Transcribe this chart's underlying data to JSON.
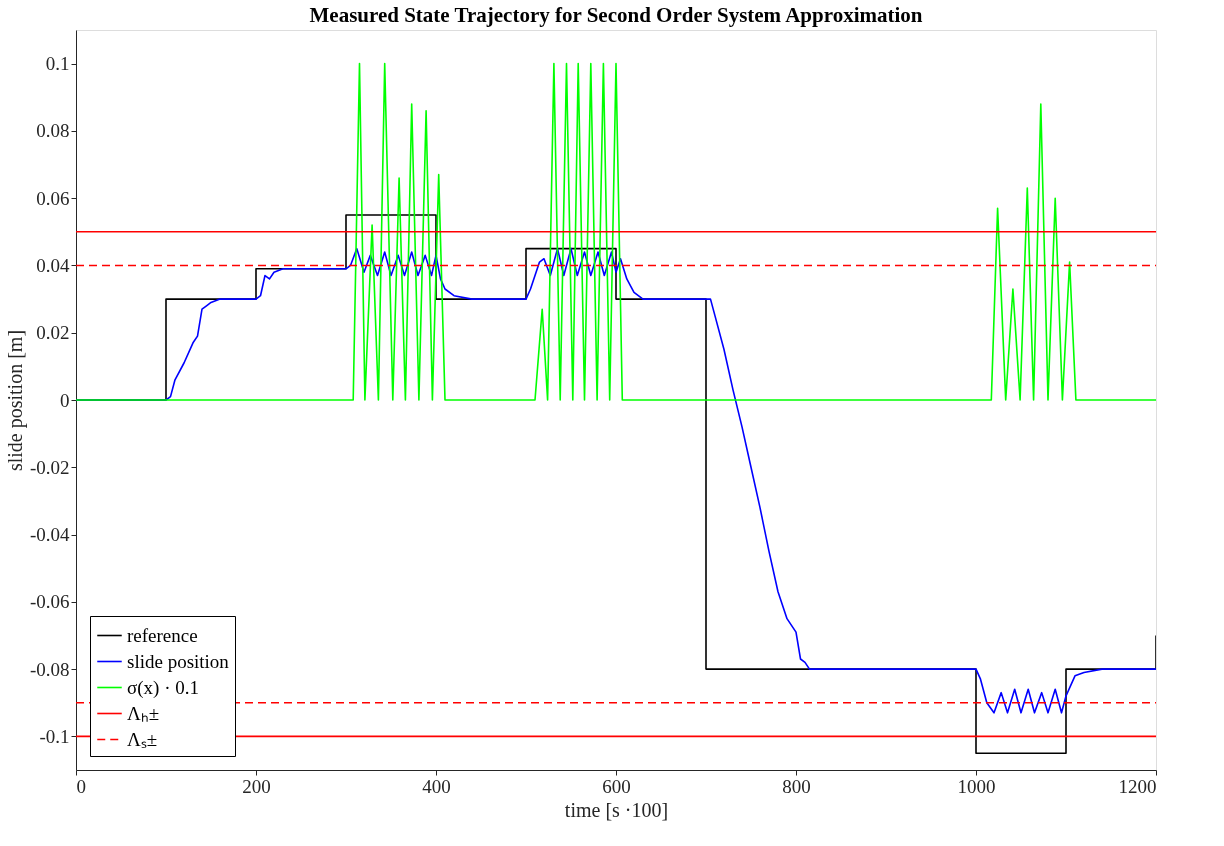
{
  "chart_data": {
    "type": "line",
    "title": "Measured State Trajectory for Second Order System Approximation",
    "xlabel": "time [s ·100]",
    "ylabel": "slide position [m]",
    "xlim": [
      0,
      1200
    ],
    "xticks": [
      0,
      200,
      400,
      600,
      800,
      1000,
      1200
    ],
    "ylim": [
      -0.11,
      0.11
    ],
    "yticks": [
      -0.1,
      -0.08,
      -0.06,
      -0.04,
      -0.02,
      0,
      0.02,
      0.04,
      0.06,
      0.08,
      0.1
    ],
    "grid": false,
    "legend": "bottom left",
    "line_style": "solid",
    "series": [
      {
        "name": "reference",
        "type": "step",
        "color": "#000000",
        "x": [
          0,
          100,
          200,
          300,
          400,
          500,
          600,
          700,
          1000,
          1100,
          1200
        ],
        "values": [
          0,
          0.03,
          0.039,
          0.055,
          0.03,
          0.045,
          0.03,
          -0.08,
          -0.105,
          -0.08,
          -0.07
        ]
      },
      {
        "name": "slide position",
        "color": "#0000ff",
        "x": [
          0,
          100,
          105,
          110,
          120,
          130,
          135,
          140,
          145,
          150,
          160,
          200,
          205,
          210,
          215,
          220,
          230,
          300,
          305,
          312,
          320,
          327,
          335,
          343,
          350,
          358,
          365,
          373,
          380,
          388,
          395,
          400,
          405,
          410,
          420,
          440,
          500,
          505,
          515,
          520,
          527,
          535,
          542,
          550,
          557,
          565,
          572,
          580,
          587,
          595,
          600,
          605,
          612,
          620,
          630,
          700,
          705,
          710,
          720,
          730,
          740,
          750,
          760,
          770,
          780,
          790,
          800,
          805,
          810,
          815,
          830,
          1000,
          1005,
          1012,
          1020,
          1028,
          1035,
          1043,
          1050,
          1058,
          1065,
          1073,
          1080,
          1088,
          1095,
          1100,
          1105,
          1110,
          1120,
          1140,
          1200
        ],
        "values": [
          0,
          0,
          0.001,
          0.006,
          0.011,
          0.017,
          0.019,
          0.027,
          0.028,
          0.029,
          0.03,
          0.03,
          0.031,
          0.037,
          0.036,
          0.038,
          0.039,
          0.039,
          0.04,
          0.045,
          0.038,
          0.043,
          0.037,
          0.044,
          0.037,
          0.043,
          0.037,
          0.044,
          0.037,
          0.043,
          0.037,
          0.043,
          0.036,
          0.033,
          0.031,
          0.03,
          0.03,
          0.033,
          0.041,
          0.042,
          0.037,
          0.045,
          0.037,
          0.045,
          0.037,
          0.044,
          0.037,
          0.044,
          0.037,
          0.044,
          0.038,
          0.042,
          0.036,
          0.032,
          0.03,
          0.03,
          0.03,
          0.025,
          0.015,
          0.003,
          -0.008,
          -0.02,
          -0.032,
          -0.045,
          -0.057,
          -0.065,
          -0.069,
          -0.077,
          -0.078,
          -0.08,
          -0.08,
          -0.08,
          -0.083,
          -0.09,
          -0.093,
          -0.087,
          -0.093,
          -0.086,
          -0.093,
          -0.086,
          -0.093,
          -0.087,
          -0.093,
          -0.086,
          -0.093,
          -0.088,
          -0.085,
          -0.082,
          -0.081,
          -0.08,
          -0.08
        ]
      },
      {
        "name": "σ(x) · 0.1",
        "color": "#00ff00",
        "x": [
          0,
          308,
          315,
          321,
          329,
          336,
          343,
          352,
          359,
          366,
          373,
          381,
          389,
          396,
          403,
          410,
          510,
          518,
          524,
          531,
          538,
          545,
          552,
          558,
          565,
          572,
          579,
          586,
          593,
          600,
          607,
          1017,
          1024,
          1033,
          1041,
          1049,
          1057,
          1064,
          1072,
          1080,
          1088,
          1096,
          1104,
          1111,
          1200
        ],
        "values": [
          0,
          0,
          0.1,
          0,
          0.052,
          0,
          0.1,
          0,
          0.066,
          0,
          0.088,
          0,
          0.086,
          0,
          0.067,
          0,
          0,
          0.027,
          0,
          0.1,
          0,
          0.1,
          0,
          0.1,
          0,
          0.1,
          0,
          0.1,
          0,
          0.1,
          0,
          0,
          0.057,
          0,
          0.033,
          0,
          0.063,
          0,
          0.088,
          0,
          0.06,
          0,
          0.041,
          0,
          0
        ]
      }
    ],
    "ref_lines": [
      {
        "axis": "y",
        "value": 0.05,
        "label": "Λₕ±",
        "color": "#ff0000",
        "line_style": "solid"
      },
      {
        "axis": "y",
        "value": -0.1,
        "color": "#ff0000",
        "line_style": "solid"
      },
      {
        "axis": "y",
        "value": 0.04,
        "label": "Λₛ±",
        "color": "#ff0000",
        "line_style": "dashed"
      },
      {
        "axis": "y",
        "value": -0.09,
        "color": "#ff0000",
        "line_style": "dashed"
      }
    ]
  }
}
